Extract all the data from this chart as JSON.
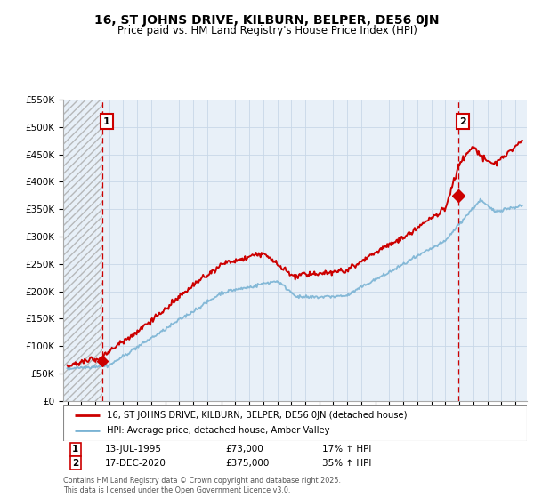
{
  "title": "16, ST JOHNS DRIVE, KILBURN, BELPER, DE56 0JN",
  "subtitle": "Price paid vs. HM Land Registry's House Price Index (HPI)",
  "legend_line1": "16, ST JOHNS DRIVE, KILBURN, BELPER, DE56 0JN (detached house)",
  "legend_line2": "HPI: Average price, detached house, Amber Valley",
  "annotation1_date": "13-JUL-1995",
  "annotation1_price": "£73,000",
  "annotation1_hpi": "17% ↑ HPI",
  "annotation2_date": "17-DEC-2020",
  "annotation2_price": "£375,000",
  "annotation2_hpi": "35% ↑ HPI",
  "footer": "Contains HM Land Registry data © Crown copyright and database right 2025.\nThis data is licensed under the Open Government Licence v3.0.",
  "price_color": "#cc0000",
  "hpi_color": "#7ab3d4",
  "annotation_color": "#cc0000",
  "vline_color": "#cc0000",
  "ylim": [
    0,
    550000
  ],
  "yticks": [
    0,
    50000,
    100000,
    150000,
    200000,
    250000,
    300000,
    350000,
    400000,
    450000,
    500000,
    550000
  ],
  "xlim_start": 1992.7,
  "xlim_end": 2025.8,
  "sale1_x": 1995.53,
  "sale1_y": 73000,
  "sale2_x": 2020.96,
  "sale2_y": 375000
}
